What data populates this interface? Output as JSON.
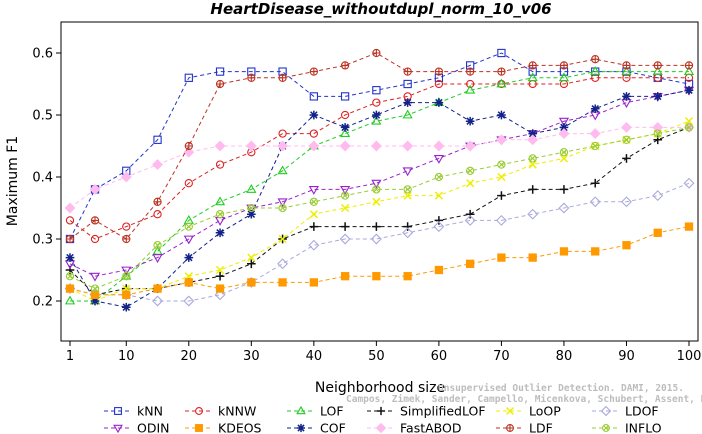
{
  "chart_data": {
    "type": "line",
    "title": "HeartDisease_withoutdupl_norm_10_v06",
    "xlabel": "Neighborhood size",
    "ylabel": "Maximum F1",
    "xlim": [
      1,
      100
    ],
    "ylim": [
      0.18,
      0.65
    ],
    "x_ticks": [
      1,
      10,
      20,
      30,
      40,
      50,
      60,
      70,
      80,
      90,
      100
    ],
    "y_ticks": [
      0.2,
      0.3,
      0.4,
      0.5,
      0.6
    ],
    "x_tick_labels": [
      "1",
      "10",
      "20",
      "30",
      "40",
      "50",
      "60",
      "70",
      "80",
      "90",
      "100"
    ],
    "y_tick_labels": [
      "0.2",
      "0.3",
      "0.4",
      "0.5",
      "0.6"
    ],
    "grid": false,
    "legend_placement": "bottom",
    "credit_line1": "Unsupervised Outlier Detection. DAMI, 2015.",
    "credit_line2": "Campos, Zimek, Sander, Campello, Micenkova, Schubert, Assent, Houle",
    "x_anchors": [
      1,
      5,
      10,
      15,
      20,
      25,
      30,
      35,
      40,
      45,
      50,
      55,
      60,
      65,
      70,
      75,
      80,
      85,
      90,
      95,
      100
    ],
    "series": [
      {
        "name": "kNN",
        "color": "#2233cc",
        "marker": "square",
        "values": [
          0.3,
          0.38,
          0.41,
          0.46,
          0.56,
          0.57,
          0.57,
          0.57,
          0.53,
          0.53,
          0.54,
          0.55,
          0.56,
          0.58,
          0.6,
          0.57,
          0.57,
          0.57,
          0.57,
          0.56,
          0.55
        ]
      },
      {
        "name": "kNNW",
        "color": "#dd2222",
        "marker": "circle",
        "values": [
          0.33,
          0.3,
          0.32,
          0.34,
          0.39,
          0.42,
          0.44,
          0.47,
          0.47,
          0.5,
          0.52,
          0.53,
          0.55,
          0.55,
          0.55,
          0.55,
          0.55,
          0.56,
          0.56,
          0.56,
          0.56
        ]
      },
      {
        "name": "LOF",
        "color": "#22cc22",
        "marker": "triangle-up",
        "values": [
          0.2,
          0.2,
          0.24,
          0.28,
          0.33,
          0.36,
          0.38,
          0.41,
          0.45,
          0.47,
          0.49,
          0.5,
          0.52,
          0.54,
          0.55,
          0.56,
          0.56,
          0.57,
          0.57,
          0.57,
          0.57
        ]
      },
      {
        "name": "SimplifiedLOF",
        "color": "#111111",
        "marker": "plus",
        "values": [
          0.25,
          0.21,
          0.22,
          0.22,
          0.23,
          0.24,
          0.26,
          0.3,
          0.32,
          0.32,
          0.32,
          0.32,
          0.33,
          0.34,
          0.37,
          0.38,
          0.38,
          0.39,
          0.43,
          0.46,
          0.48
        ]
      },
      {
        "name": "LoOP",
        "color": "#eeee00",
        "marker": "x",
        "values": [
          0.22,
          0.2,
          0.22,
          0.22,
          0.24,
          0.25,
          0.27,
          0.3,
          0.34,
          0.35,
          0.36,
          0.37,
          0.37,
          0.39,
          0.4,
          0.42,
          0.43,
          0.45,
          0.46,
          0.47,
          0.49
        ]
      },
      {
        "name": "LDOF",
        "color": "#aaaadd",
        "marker": "diamond",
        "values": [
          0.22,
          0.21,
          0.21,
          0.2,
          0.2,
          0.21,
          0.23,
          0.26,
          0.29,
          0.3,
          0.3,
          0.31,
          0.32,
          0.33,
          0.33,
          0.34,
          0.35,
          0.36,
          0.36,
          0.37,
          0.39
        ]
      },
      {
        "name": "ODIN",
        "color": "#9922cc",
        "marker": "triangle-down",
        "values": [
          0.26,
          0.24,
          0.25,
          0.27,
          0.3,
          0.33,
          0.35,
          0.36,
          0.38,
          0.38,
          0.39,
          0.41,
          0.43,
          0.45,
          0.46,
          0.47,
          0.49,
          0.5,
          0.52,
          0.53,
          0.54
        ]
      },
      {
        "name": "COF",
        "color": "#112288",
        "marker": "asterisk",
        "values": [
          0.27,
          0.2,
          0.19,
          0.22,
          0.27,
          0.31,
          0.34,
          0.45,
          0.5,
          0.48,
          0.5,
          0.52,
          0.52,
          0.49,
          0.5,
          0.47,
          0.48,
          0.51,
          0.53,
          0.53,
          0.54
        ]
      },
      {
        "name": "FastABOD",
        "color": "#ffbbee",
        "marker": "diamond-filled",
        "values": [
          0.35,
          0.38,
          0.4,
          0.42,
          0.44,
          0.45,
          0.45,
          0.45,
          0.45,
          0.45,
          0.45,
          0.45,
          0.45,
          0.45,
          0.46,
          0.46,
          0.47,
          0.47,
          0.48,
          0.48,
          0.48
        ]
      },
      {
        "name": "KDEOS",
        "color": "#ff9900",
        "marker": "square-filled",
        "values": [
          0.22,
          0.21,
          0.21,
          0.22,
          0.23,
          0.22,
          0.23,
          0.23,
          0.23,
          0.24,
          0.24,
          0.24,
          0.25,
          0.26,
          0.27,
          0.27,
          0.28,
          0.28,
          0.29,
          0.31,
          0.32
        ]
      },
      {
        "name": "LDF",
        "color": "#bb3322",
        "marker": "circle-plus",
        "values": [
          0.3,
          0.33,
          0.3,
          0.36,
          0.45,
          0.55,
          0.56,
          0.56,
          0.57,
          0.58,
          0.6,
          0.57,
          0.57,
          0.57,
          0.57,
          0.58,
          0.58,
          0.59,
          0.58,
          0.58,
          0.58
        ]
      },
      {
        "name": "INFLO",
        "color": "#99cc33",
        "marker": "circle-x",
        "values": [
          0.24,
          0.22,
          0.24,
          0.29,
          0.32,
          0.34,
          0.35,
          0.35,
          0.36,
          0.37,
          0.38,
          0.38,
          0.4,
          0.41,
          0.42,
          0.43,
          0.44,
          0.45,
          0.46,
          0.47,
          0.48
        ]
      }
    ],
    "legend_order": [
      "kNN",
      "kNNW",
      "LOF",
      "SimplifiedLOF",
      "LoOP",
      "LDOF",
      "ODIN",
      "KDEOS",
      "COF",
      "FastABOD",
      "LDF",
      "INFLO"
    ]
  }
}
